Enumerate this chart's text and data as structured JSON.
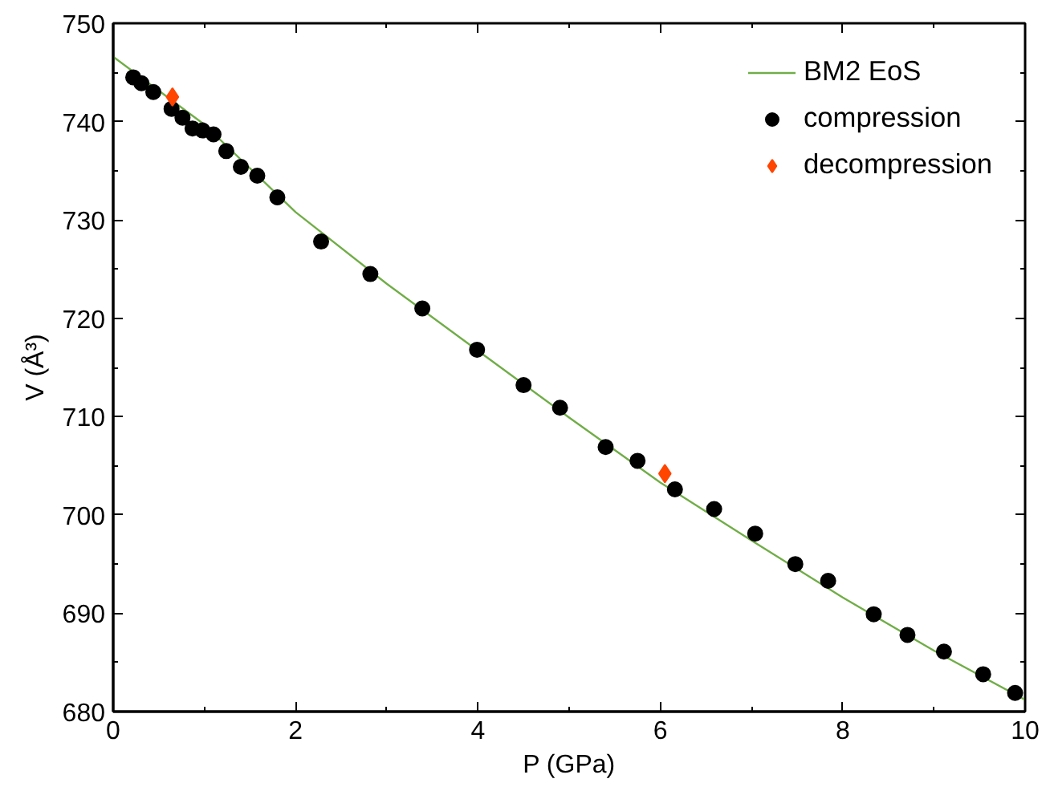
{
  "chart_data": {
    "type": "scatter",
    "xlabel": "P (GPa)",
    "ylabel": "V (Å³)",
    "xlim": [
      0,
      10
    ],
    "ylim": [
      680,
      750
    ],
    "xticks": [
      0,
      2,
      4,
      6,
      8,
      10
    ],
    "yticks": [
      680,
      690,
      700,
      710,
      720,
      730,
      740,
      750
    ],
    "grid": false,
    "legend": "top right",
    "series": [
      {
        "name": "BM2 EoS",
        "type": "line",
        "color": "#70ad47",
        "marker": "none",
        "line_style": "solid",
        "x": [
          0,
          1,
          2,
          3,
          4,
          5,
          6,
          7,
          8,
          9,
          10
        ],
        "values": [
          746.6,
          739.7,
          730.8,
          723.5,
          716.7,
          709.9,
          703.3,
          697.4,
          691.6,
          686.2,
          681.2
        ]
      },
      {
        "name": "compression",
        "color": "#000000",
        "marker": "circle",
        "x": [
          0.22,
          0.31,
          0.44,
          0.64,
          0.76,
          0.87,
          0.98,
          1.1,
          1.24,
          1.4,
          1.58,
          1.8,
          2.28,
          2.82,
          3.39,
          3.99,
          4.5,
          4.9,
          5.4,
          5.75,
          6.16,
          6.59,
          7.04,
          7.48,
          7.84,
          8.34,
          8.71,
          9.11,
          9.54,
          9.89
        ],
        "values": [
          744.5,
          743.9,
          743.0,
          741.3,
          740.4,
          739.3,
          739.1,
          738.7,
          737.0,
          735.4,
          734.5,
          732.3,
          727.8,
          724.5,
          721.0,
          716.8,
          713.2,
          710.9,
          706.9,
          705.5,
          702.6,
          700.6,
          698.1,
          695.0,
          693.3,
          689.9,
          687.8,
          686.1,
          683.8,
          681.9
        ]
      },
      {
        "name": "decompression",
        "color": "#ff4500",
        "marker": "diamond",
        "x": [
          0.65,
          6.05
        ],
        "values": [
          742.5,
          704.2
        ]
      }
    ]
  }
}
